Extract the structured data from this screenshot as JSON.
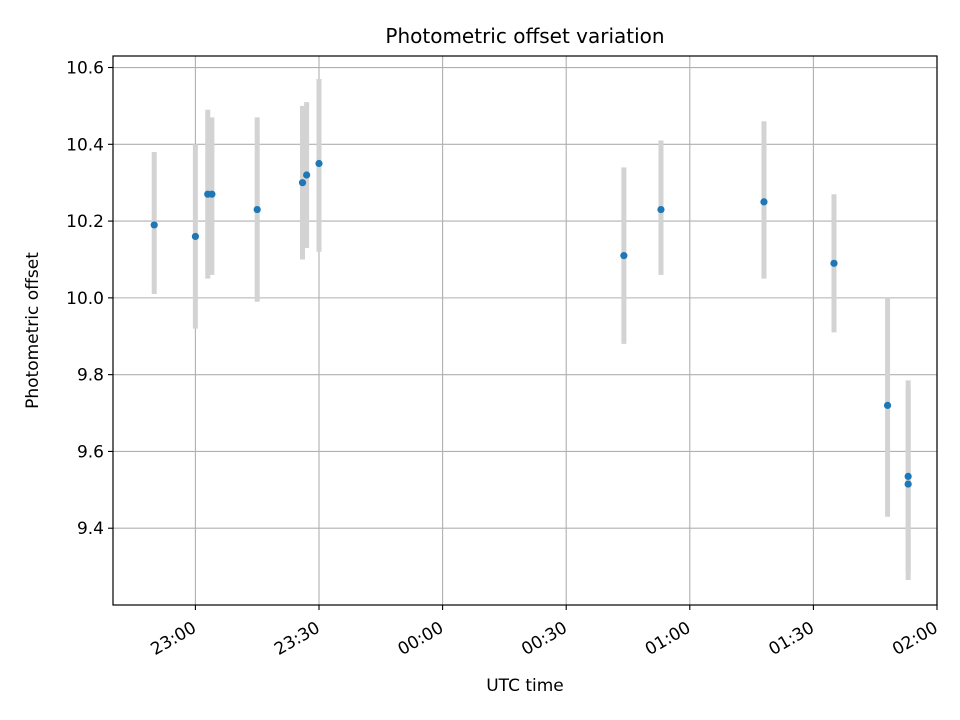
{
  "chart_data": {
    "type": "scatter",
    "title": "Photometric offset variation",
    "xlabel": "UTC time",
    "ylabel": "Photometric offset",
    "xlim": [
      "22:40",
      "02:00"
    ],
    "ylim": [
      9.2,
      10.63
    ],
    "grid": true,
    "x_ticks": [
      "23:00",
      "23:30",
      "00:00",
      "00:30",
      "01:00",
      "01:30",
      "02:00"
    ],
    "y_ticks": [
      9.4,
      9.6,
      9.8,
      10.0,
      10.2,
      10.4,
      10.6
    ],
    "y_tick_labels": [
      "9.4",
      "9.6",
      "9.8",
      "10.0",
      "10.2",
      "10.4",
      "10.6"
    ],
    "colors": {
      "points": "#1f77b4",
      "error_bars": "#d3d3d3",
      "grid": "#b0b0b0"
    },
    "series": [
      {
        "x": [
          "22:50",
          "23:00",
          "23:03",
          "23:04",
          "23:15",
          "23:26",
          "23:27",
          "23:30",
          "00:44",
          "00:53",
          "01:18",
          "01:35",
          "01:48",
          "01:53",
          "01:53"
        ],
        "y": [
          10.19,
          10.16,
          10.27,
          10.27,
          10.23,
          10.3,
          10.32,
          10.35,
          10.11,
          10.23,
          10.25,
          10.09,
          9.72,
          9.535,
          9.515
        ],
        "error_low": [
          10.01,
          9.92,
          10.05,
          10.06,
          9.99,
          10.1,
          10.13,
          10.12,
          9.88,
          10.06,
          10.05,
          9.91,
          9.43,
          9.285,
          9.265
        ],
        "error_high": [
          10.38,
          10.4,
          10.49,
          10.47,
          10.47,
          10.5,
          10.51,
          10.57,
          10.34,
          10.41,
          10.46,
          10.27,
          10.0,
          9.785,
          9.765
        ]
      }
    ]
  }
}
